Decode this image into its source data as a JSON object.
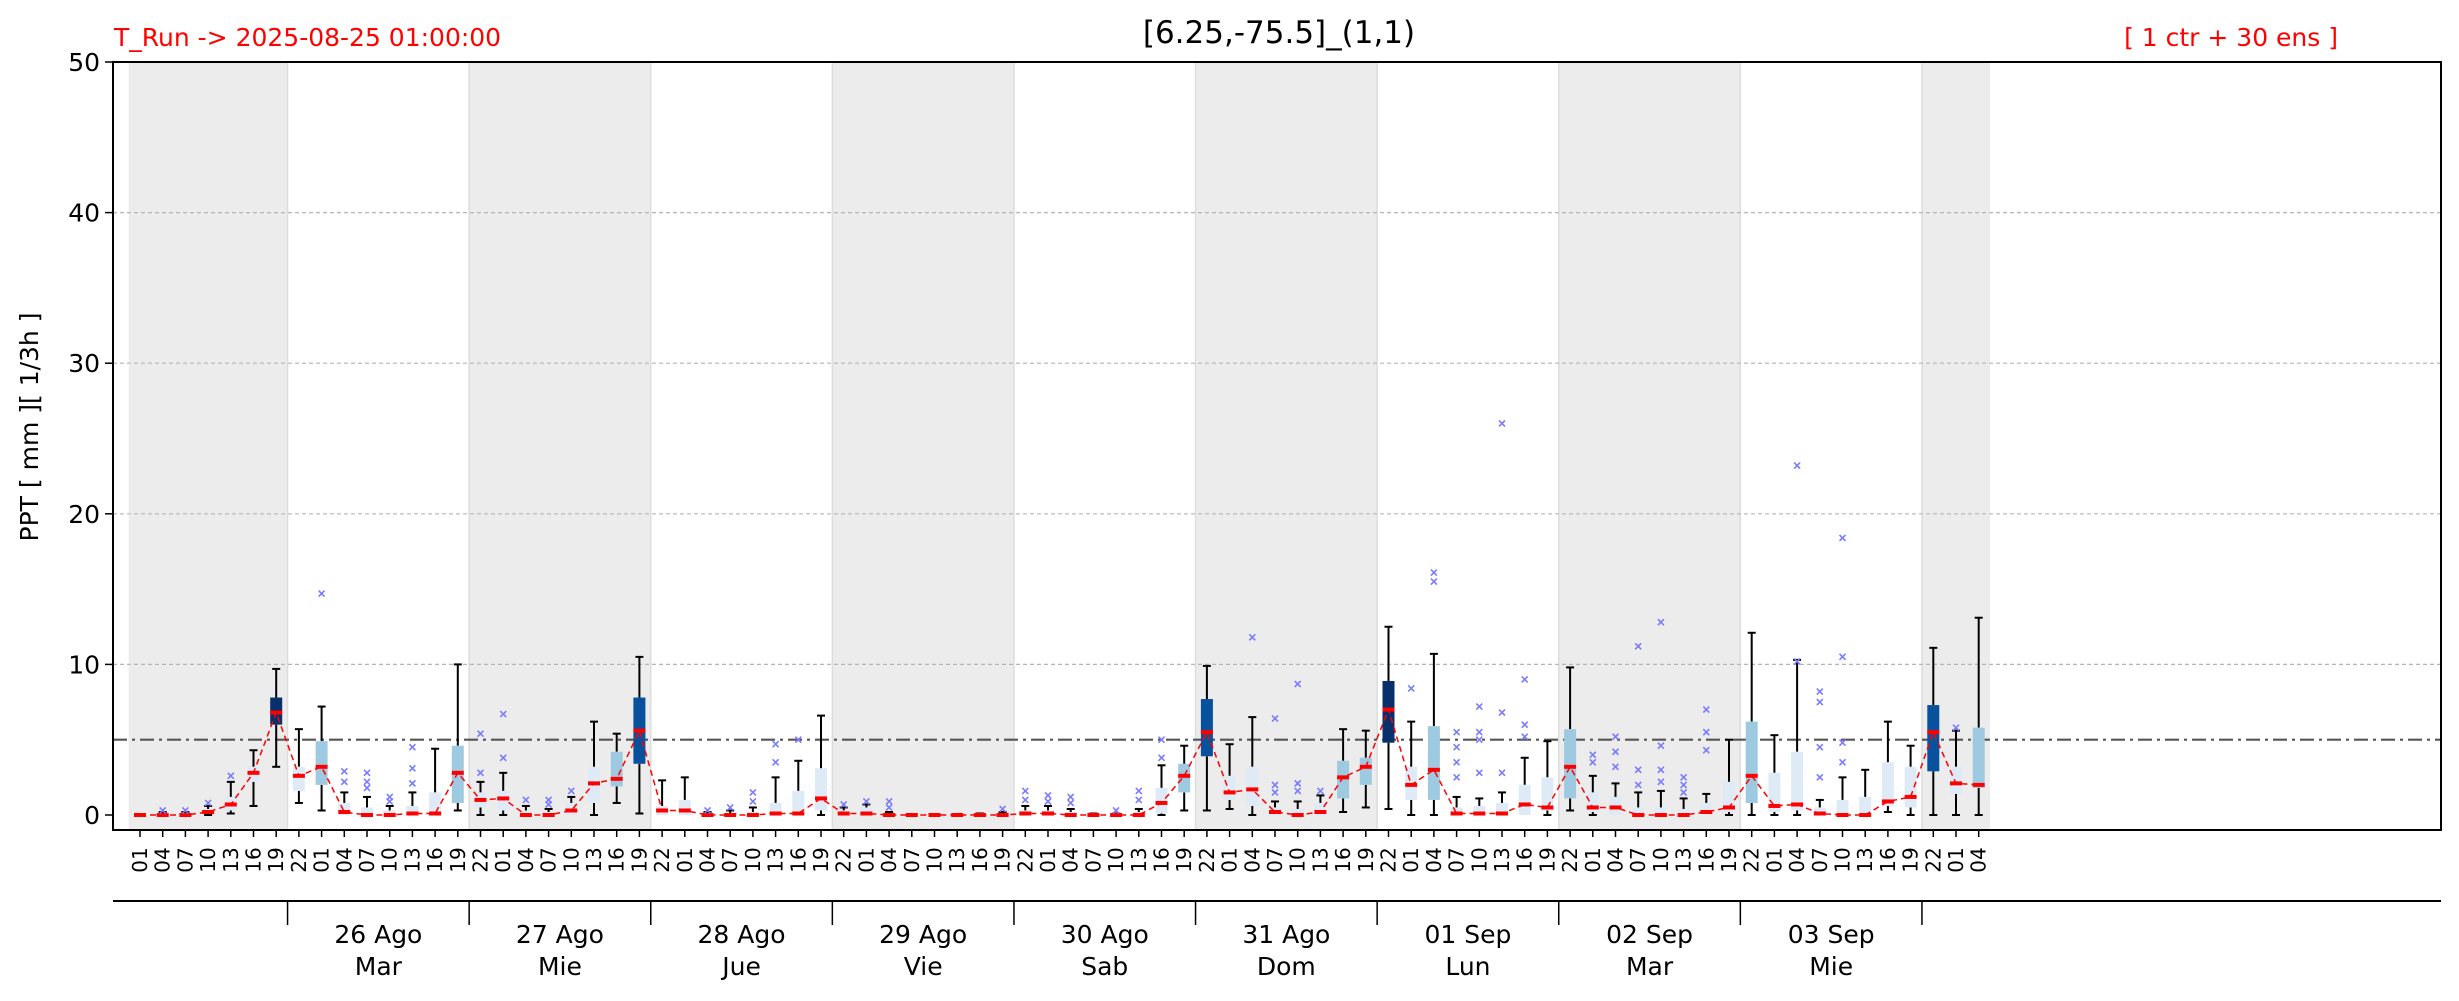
{
  "chart_data": {
    "type": "box",
    "title": "[6.25,-75.5]_(1,1)",
    "run_label": "T_Run -> 2025-08-25  01:00:00",
    "ensemble_label": "[ 1 ctr + 30 ens ]",
    "ylabel": "PPT  [ mm ][ 1/3h ]",
    "ylim": [
      0,
      50
    ],
    "yticks": [
      "0",
      "10",
      "20",
      "30",
      "40",
      "50"
    ],
    "threshold": 5,
    "grid": true,
    "hour_ticks": [
      "01",
      "04",
      "07",
      "10",
      "13",
      "16",
      "19",
      "22"
    ],
    "days": [
      {
        "date": "",
        "weekday": "",
        "shaded": true
      },
      {
        "date": "26 Ago",
        "weekday": "Mar",
        "shaded": false
      },
      {
        "date": "27 Ago",
        "weekday": "Mie",
        "shaded": true
      },
      {
        "date": "28 Ago",
        "weekday": "Jue",
        "shaded": false
      },
      {
        "date": "29 Ago",
        "weekday": "Vie",
        "shaded": true
      },
      {
        "date": "30 Ago",
        "weekday": "Sab",
        "shaded": false
      },
      {
        "date": "31 Ago",
        "weekday": "Dom",
        "shaded": true
      },
      {
        "date": "01 Sep",
        "weekday": "Lun",
        "shaded": false
      },
      {
        "date": "02 Sep",
        "weekday": "Mar",
        "shaded": true
      },
      {
        "date": "03 Sep",
        "weekday": "Mie",
        "shaded": false
      },
      {
        "date": "",
        "weekday": "",
        "shaded": true
      }
    ],
    "colors": {
      "median": "#ff0000",
      "mean_line": "#ff0000",
      "outlier": "#7b7bff",
      "shade": "#ececec",
      "threshold": "#555555",
      "run_label": "#ff0000",
      "box_palette": [
        "#deebf7",
        "#9ecae1",
        "#4292c6",
        "#08519c",
        "#08306b"
      ]
    },
    "series": [
      {
        "min": 0,
        "q1": 0,
        "median": 0,
        "q3": 0.1,
        "max": 0.1,
        "outliers": [],
        "level": 0
      },
      {
        "min": 0,
        "q1": 0,
        "median": 0,
        "q3": 0.1,
        "max": 0.2,
        "outliers": [
          0.3
        ],
        "level": 0
      },
      {
        "min": 0,
        "q1": 0,
        "median": 0,
        "q3": 0.1,
        "max": 0.2,
        "outliers": [
          0.3
        ],
        "level": 0
      },
      {
        "min": 0,
        "q1": 0.1,
        "median": 0.2,
        "q3": 0.4,
        "max": 0.6,
        "outliers": [
          0.8
        ],
        "level": 0
      },
      {
        "min": 0.1,
        "q1": 0.3,
        "median": 0.7,
        "q3": 1.2,
        "max": 2.2,
        "outliers": [
          2.6
        ],
        "level": 0
      },
      {
        "min": 0.6,
        "q1": 2.2,
        "median": 2.8,
        "q3": 3.2,
        "max": 4.3,
        "outliers": [],
        "level": 0
      },
      {
        "min": 3.2,
        "q1": 6,
        "median": 6.8,
        "q3": 7.8,
        "max": 9.7,
        "outliers": [],
        "level": 4
      },
      {
        "min": 0.8,
        "q1": 1.6,
        "median": 2.6,
        "q3": 3.2,
        "max": 5.7,
        "outliers": [],
        "level": 0
      },
      {
        "min": 0.3,
        "q1": 2,
        "median": 3.2,
        "q3": 4.9,
        "max": 7.2,
        "outliers": [
          14.7
        ],
        "level": 1
      },
      {
        "min": 0,
        "q1": 0,
        "median": 0.2,
        "q3": 0.8,
        "max": 1.5,
        "outliers": [
          2.2,
          2.9
        ],
        "level": 0
      },
      {
        "min": 0,
        "q1": 0,
        "median": 0,
        "q3": 0.5,
        "max": 1.2,
        "outliers": [
          1.8,
          2.2,
          2.8
        ],
        "level": 0
      },
      {
        "min": 0,
        "q1": 0,
        "median": 0,
        "q3": 0.3,
        "max": 0.6,
        "outliers": [
          0.9,
          1.2
        ],
        "level": 0
      },
      {
        "min": 0,
        "q1": 0,
        "median": 0.1,
        "q3": 0.6,
        "max": 1.5,
        "outliers": [
          2.1,
          3.1,
          4.5
        ],
        "level": 0
      },
      {
        "min": 0,
        "q1": 0,
        "median": 0.1,
        "q3": 1.5,
        "max": 4.4,
        "outliers": [],
        "level": 0
      },
      {
        "min": 0.3,
        "q1": 0.8,
        "median": 2.8,
        "q3": 4.6,
        "max": 10,
        "outliers": [],
        "level": 1
      },
      {
        "min": 0,
        "q1": 0.5,
        "median": 1,
        "q3": 1.5,
        "max": 2.2,
        "outliers": [
          2.8,
          5.4
        ],
        "level": 0
      },
      {
        "min": 0,
        "q1": 0.3,
        "median": 1.1,
        "q3": 1.6,
        "max": 2.8,
        "outliers": [
          3.8,
          6.7
        ],
        "level": 0
      },
      {
        "min": 0,
        "q1": 0,
        "median": 0,
        "q3": 0.3,
        "max": 0.6,
        "outliers": [
          1
        ],
        "level": 0
      },
      {
        "min": 0,
        "q1": 0,
        "median": 0,
        "q3": 0.2,
        "max": 0.4,
        "outliers": [
          0.7,
          1
        ],
        "level": 0
      },
      {
        "min": 0,
        "q1": 0,
        "median": 0.3,
        "q3": 0.8,
        "max": 1.2,
        "outliers": [
          1.6
        ],
        "level": 0
      },
      {
        "min": 0,
        "q1": 0.8,
        "median": 2.1,
        "q3": 3.2,
        "max": 6.2,
        "outliers": [],
        "level": 0
      },
      {
        "min": 0.8,
        "q1": 1.9,
        "median": 2.4,
        "q3": 4.2,
        "max": 5.4,
        "outliers": [],
        "level": 1
      },
      {
        "min": 0.1,
        "q1": 3.4,
        "median": 5.6,
        "q3": 7.8,
        "max": 10.5,
        "outliers": [],
        "level": 3
      },
      {
        "min": 0,
        "q1": 0,
        "median": 0.3,
        "q3": 0.6,
        "max": 2.3,
        "outliers": [],
        "level": 0
      },
      {
        "min": 0,
        "q1": 0,
        "median": 0.3,
        "q3": 1,
        "max": 2.5,
        "outliers": [],
        "level": 0
      },
      {
        "min": 0,
        "q1": 0,
        "median": 0,
        "q3": 0.1,
        "max": 0.2,
        "outliers": [
          0.3
        ],
        "level": 0
      },
      {
        "min": 0,
        "q1": 0,
        "median": 0,
        "q3": 0.1,
        "max": 0.3,
        "outliers": [
          0.5
        ],
        "level": 0
      },
      {
        "min": 0,
        "q1": 0,
        "median": 0,
        "q3": 0.2,
        "max": 0.5,
        "outliers": [
          0.9,
          1.5
        ],
        "level": 0
      },
      {
        "min": 0,
        "q1": 0,
        "median": 0.1,
        "q3": 0.8,
        "max": 2.5,
        "outliers": [
          3.5,
          4.7
        ],
        "level": 0
      },
      {
        "min": 0,
        "q1": 0,
        "median": 0.1,
        "q3": 1.6,
        "max": 3.6,
        "outliers": [
          5
        ],
        "level": 0
      },
      {
        "min": 0,
        "q1": 0.3,
        "median": 1.1,
        "q3": 3.1,
        "max": 6.6,
        "outliers": [],
        "level": 0
      },
      {
        "min": 0,
        "q1": 0,
        "median": 0.1,
        "q3": 0.3,
        "max": 0.5,
        "outliers": [
          0.7
        ],
        "level": 0
      },
      {
        "min": 0,
        "q1": 0,
        "median": 0.1,
        "q3": 0.5,
        "max": 0.7,
        "outliers": [
          0.9
        ],
        "level": 0
      },
      {
        "min": 0,
        "q1": 0,
        "median": 0,
        "q3": 0.1,
        "max": 0.2,
        "outliers": [
          0.5,
          0.9
        ],
        "level": 0
      },
      {
        "min": 0,
        "q1": 0,
        "median": 0,
        "q3": 0,
        "max": 0,
        "outliers": [],
        "level": 0
      },
      {
        "min": 0,
        "q1": 0,
        "median": 0,
        "q3": 0,
        "max": 0,
        "outliers": [],
        "level": 0
      },
      {
        "min": 0,
        "q1": 0,
        "median": 0,
        "q3": 0,
        "max": 0,
        "outliers": [],
        "level": 0
      },
      {
        "min": 0,
        "q1": 0,
        "median": 0,
        "q3": 0,
        "max": 0.1,
        "outliers": [],
        "level": 0
      },
      {
        "min": 0,
        "q1": 0,
        "median": 0,
        "q3": 0.1,
        "max": 0.2,
        "outliers": [
          0.4
        ],
        "level": 0
      },
      {
        "min": 0,
        "q1": 0,
        "median": 0.1,
        "q3": 0.3,
        "max": 0.6,
        "outliers": [
          1,
          1.6
        ],
        "level": 0
      },
      {
        "min": 0,
        "q1": 0,
        "median": 0.1,
        "q3": 0.3,
        "max": 0.6,
        "outliers": [
          0.9,
          1.3
        ],
        "level": 0
      },
      {
        "min": 0,
        "q1": 0,
        "median": 0,
        "q3": 0.2,
        "max": 0.4,
        "outliers": [
          0.8,
          1.2
        ],
        "level": 0
      },
      {
        "min": 0,
        "q1": 0,
        "median": 0,
        "q3": 0,
        "max": 0.1,
        "outliers": [],
        "level": 0
      },
      {
        "min": 0,
        "q1": 0,
        "median": 0,
        "q3": 0,
        "max": 0.1,
        "outliers": [
          0.3
        ],
        "level": 0
      },
      {
        "min": 0,
        "q1": 0,
        "median": 0,
        "q3": 0.2,
        "max": 0.4,
        "outliers": [
          1,
          1.6
        ],
        "level": 0
      },
      {
        "min": 0,
        "q1": 0.1,
        "median": 0.8,
        "q3": 1.8,
        "max": 3.3,
        "outliers": [
          3.8,
          5
        ],
        "level": 0
      },
      {
        "min": 0.3,
        "q1": 1.5,
        "median": 2.6,
        "q3": 3.4,
        "max": 4.6,
        "outliers": [],
        "level": 1
      },
      {
        "min": 0.3,
        "q1": 3.9,
        "median": 5.5,
        "q3": 7.7,
        "max": 9.9,
        "outliers": [],
        "level": 3
      },
      {
        "min": 0.4,
        "q1": 1,
        "median": 1.5,
        "q3": 2.6,
        "max": 4.7,
        "outliers": [],
        "level": 0
      },
      {
        "min": 0,
        "q1": 0.6,
        "median": 1.7,
        "q3": 3.2,
        "max": 6.5,
        "outliers": [
          11.8
        ],
        "level": 0
      },
      {
        "min": 0,
        "q1": 0,
        "median": 0.2,
        "q3": 0.5,
        "max": 0.9,
        "outliers": [
          1.5,
          2,
          6.4
        ],
        "level": 0
      },
      {
        "min": 0,
        "q1": 0,
        "median": 0,
        "q3": 0.4,
        "max": 0.9,
        "outliers": [
          1.6,
          2.1,
          8.7
        ],
        "level": 0
      },
      {
        "min": 0,
        "q1": 0,
        "median": 0.2,
        "q3": 0.8,
        "max": 1.3,
        "outliers": [
          1.6
        ],
        "level": 0
      },
      {
        "min": 0.2,
        "q1": 1.1,
        "median": 2.5,
        "q3": 3.6,
        "max": 5.7,
        "outliers": [],
        "level": 1
      },
      {
        "min": 0.5,
        "q1": 2,
        "median": 3.2,
        "q3": 3.8,
        "max": 5.6,
        "outliers": [],
        "level": 1
      },
      {
        "min": 0.4,
        "q1": 4.8,
        "median": 7,
        "q3": 8.9,
        "max": 12.5,
        "outliers": [],
        "level": 4
      },
      {
        "min": 0,
        "q1": 1,
        "median": 2,
        "q3": 3.2,
        "max": 6.2,
        "outliers": [
          8.4
        ],
        "level": 0
      },
      {
        "min": 0,
        "q1": 1,
        "median": 3,
        "q3": 5.9,
        "max": 10.7,
        "outliers": [
          15.5,
          16.1
        ],
        "level": 1
      },
      {
        "min": 0,
        "q1": 0,
        "median": 0.1,
        "q3": 0.5,
        "max": 1.2,
        "outliers": [
          2.5,
          3.5,
          4.5,
          5.5
        ],
        "level": 0
      },
      {
        "min": 0,
        "q1": 0,
        "median": 0.1,
        "q3": 0.6,
        "max": 1.1,
        "outliers": [
          2.8,
          5,
          5.5,
          7.2
        ],
        "level": 0
      },
      {
        "min": 0,
        "q1": 0,
        "median": 0.1,
        "q3": 0.8,
        "max": 1.5,
        "outliers": [
          2.8,
          6.8,
          26
        ],
        "level": 0
      },
      {
        "min": 0,
        "q1": 0,
        "median": 0.7,
        "q3": 2,
        "max": 3.8,
        "outliers": [
          5.2,
          6,
          9
        ],
        "level": 0
      },
      {
        "min": 0,
        "q1": 0.3,
        "median": 0.5,
        "q3": 2.5,
        "max": 4.9,
        "outliers": [],
        "level": 0
      },
      {
        "min": 0.3,
        "q1": 1.1,
        "median": 3.2,
        "q3": 5.7,
        "max": 9.8,
        "outliers": [],
        "level": 1
      },
      {
        "min": 0,
        "q1": 0.2,
        "median": 0.5,
        "q3": 1.5,
        "max": 2.6,
        "outliers": [
          3.5,
          4
        ],
        "level": 0
      },
      {
        "min": 0,
        "q1": 0,
        "median": 0.5,
        "q3": 1.2,
        "max": 2.1,
        "outliers": [
          3.2,
          4.2,
          5.2
        ],
        "level": 0
      },
      {
        "min": 0,
        "q1": 0,
        "median": 0,
        "q3": 0.5,
        "max": 1.5,
        "outliers": [
          2,
          3,
          11.2
        ],
        "level": 0
      },
      {
        "min": 0,
        "q1": 0,
        "median": 0,
        "q3": 0.5,
        "max": 1.6,
        "outliers": [
          2.2,
          3,
          4.6,
          12.8
        ],
        "level": 0
      },
      {
        "min": 0,
        "q1": 0,
        "median": 0,
        "q3": 0.4,
        "max": 1.1,
        "outliers": [
          1.5,
          2,
          2.5
        ],
        "level": 0
      },
      {
        "min": 0,
        "q1": 0,
        "median": 0.2,
        "q3": 0.8,
        "max": 1.4,
        "outliers": [
          4.3,
          5.5,
          7
        ],
        "level": 0
      },
      {
        "min": 0,
        "q1": 0.2,
        "median": 0.5,
        "q3": 2.2,
        "max": 5,
        "outliers": [],
        "level": 0
      },
      {
        "min": 0,
        "q1": 0.8,
        "median": 2.6,
        "q3": 6.2,
        "max": 12.1,
        "outliers": [],
        "level": 1
      },
      {
        "min": 0,
        "q1": 0.2,
        "median": 0.6,
        "q3": 2.8,
        "max": 5.3,
        "outliers": [],
        "level": 0
      },
      {
        "min": 0,
        "q1": 0.3,
        "median": 0.7,
        "q3": 4.2,
        "max": 10.3,
        "outliers": [
          10.2,
          23.2
        ],
        "level": 0
      },
      {
        "min": 0,
        "q1": 0,
        "median": 0.1,
        "q3": 0.5,
        "max": 1,
        "outliers": [
          2.5,
          4.5,
          7.5,
          8.2
        ],
        "level": 0
      },
      {
        "min": 0,
        "q1": 0,
        "median": 0,
        "q3": 1,
        "max": 2.5,
        "outliers": [
          3.5,
          4.8,
          10.5,
          18.4
        ],
        "level": 0
      },
      {
        "min": 0,
        "q1": 0,
        "median": 0,
        "q3": 1.2,
        "max": 3,
        "outliers": [],
        "level": 0
      },
      {
        "min": 0.2,
        "q1": 0.6,
        "median": 0.9,
        "q3": 3.5,
        "max": 6.2,
        "outliers": [],
        "level": 0
      },
      {
        "min": 0,
        "q1": 0.5,
        "median": 1.2,
        "q3": 3.2,
        "max": 4.6,
        "outliers": [],
        "level": 0
      },
      {
        "min": 0,
        "q1": 2.9,
        "median": 5.5,
        "q3": 7.3,
        "max": 11.1,
        "outliers": [],
        "level": 3
      },
      {
        "min": 0,
        "q1": 1.4,
        "median": 2.1,
        "q3": 3.2,
        "max": 5.6,
        "outliers": [
          5.8
        ],
        "level": 0
      },
      {
        "min": 0,
        "q1": 1.8,
        "median": 2,
        "q3": 5.8,
        "max": 13.1,
        "outliers": [],
        "level": 1
      }
    ]
  }
}
